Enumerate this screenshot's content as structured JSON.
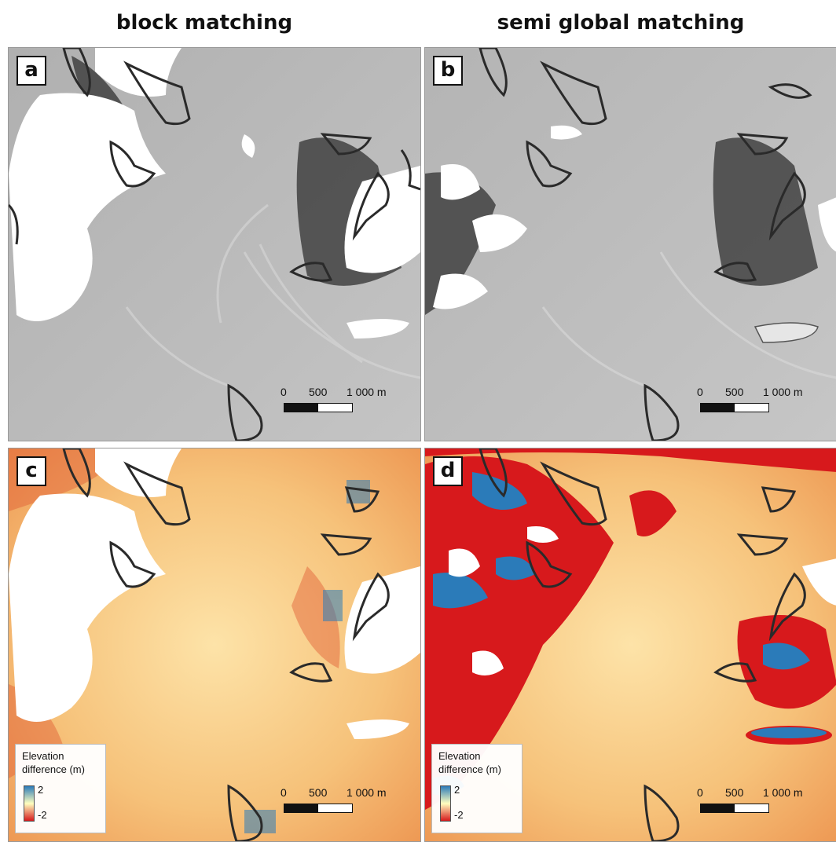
{
  "columns": {
    "left_title": "block matching",
    "right_title": "semi global matching"
  },
  "panels": [
    {
      "label": "a",
      "type": "hillshade"
    },
    {
      "label": "b",
      "type": "hillshade"
    },
    {
      "label": "c",
      "type": "elevation-difference"
    },
    {
      "label": "d",
      "type": "elevation-difference"
    }
  ],
  "scalebar": {
    "ticks": [
      "0",
      "500",
      "1 000 m"
    ]
  },
  "legend": {
    "title": "Elevation difference (m)",
    "title_line1": "Elevation",
    "title_line2": "difference (m)",
    "max_label": "2",
    "min_label": "-2",
    "colors": {
      "high": "#2b7bb9",
      "mid": "#ffffbf",
      "low": "#d7191c"
    }
  },
  "colors": {
    "hillshade_base": "#b8b8b8",
    "nodata": "#ffffff",
    "outline": "#2a2a2a",
    "diff_base": "#f6c98a"
  }
}
